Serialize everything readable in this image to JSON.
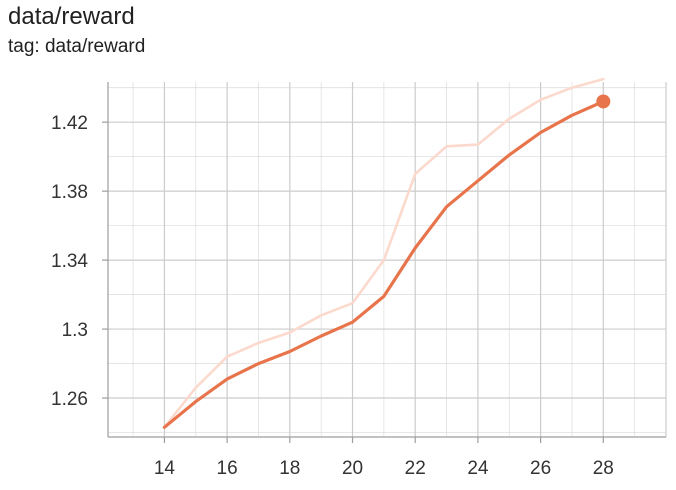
{
  "header": {
    "title": "data/reward",
    "subtitle": "tag: data/reward"
  },
  "chart_data": {
    "type": "line",
    "title": "data/reward",
    "subtitle": "tag: data/reward",
    "xlabel": "",
    "ylabel": "",
    "xlim": [
      12.2,
      30.0
    ],
    "ylim": [
      1.2374,
      1.4433
    ],
    "x_ticks": [
      14,
      16,
      18,
      20,
      22,
      24,
      26,
      28
    ],
    "y_ticks": [
      1.26,
      1.3,
      1.34,
      1.38,
      1.42
    ],
    "y_tick_labels": [
      "1.26",
      "1.3",
      "1.34",
      "1.38",
      "1.42"
    ],
    "grid": true,
    "colors": {
      "smoothed": "#e8744c",
      "raw": "#fcd9cd",
      "grid": "#cccccc",
      "axis": "#9e9e9e"
    },
    "series": [
      {
        "role": "raw",
        "x": [
          14,
          15,
          16,
          17,
          18,
          19,
          20,
          21,
          22,
          23,
          24,
          25,
          26,
          27,
          28
        ],
        "y": [
          1.243,
          1.266,
          1.284,
          1.292,
          1.298,
          1.308,
          1.315,
          1.34,
          1.39,
          1.406,
          1.407,
          1.422,
          1.433,
          1.44,
          1.445
        ]
      },
      {
        "role": "smoothed",
        "x": [
          14,
          15,
          16,
          17,
          18,
          19,
          20,
          21,
          22,
          23,
          24,
          25,
          26,
          27,
          28
        ],
        "y": [
          1.243,
          1.258,
          1.271,
          1.28,
          1.287,
          1.296,
          1.304,
          1.319,
          1.347,
          1.371,
          1.386,
          1.401,
          1.414,
          1.424,
          1.432
        ]
      }
    ],
    "highlight_point": {
      "x": 28,
      "y": 1.432
    }
  }
}
